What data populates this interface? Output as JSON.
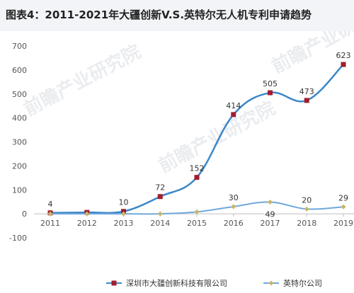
{
  "header": {
    "title": "图表4：2011-2021年大疆创新V.S.英特尔无人机专利申请趋势"
  },
  "watermark": {
    "text": "前瞻产业研究院"
  },
  "chart_data": {
    "type": "line",
    "title": "图表4：2011-2021年大疆创新V.S.英特尔无人机专利申请趋势",
    "xlabel": "",
    "ylabel": "",
    "categories": [
      "2011",
      "2012",
      "2013",
      "2014",
      "2015",
      "2016",
      "2017",
      "2018",
      "2019"
    ],
    "ylim": [
      -100,
      700
    ],
    "yticks": [
      -100,
      0,
      100,
      200,
      300,
      400,
      500,
      600,
      700
    ],
    "grid": false,
    "legend_position": "bottom",
    "series": [
      {
        "name": "深圳市大疆创新科技有限公司",
        "color": "#3a87c8",
        "marker_color": "#a11d2f",
        "marker": "square",
        "values": [
          4,
          6,
          10,
          72,
          152,
          414,
          505,
          473,
          623
        ],
        "labels": [
          "4",
          "",
          "10",
          "72",
          "152",
          "414",
          "505",
          "473",
          "623"
        ]
      },
      {
        "name": "英特尔公司",
        "color": "#6fa8dc",
        "marker_color": "#c8b46a",
        "marker": "diamond",
        "values": [
          0,
          0,
          0,
          0,
          8,
          30,
          49,
          20,
          29
        ],
        "labels": [
          "",
          "",
          "",
          "",
          "",
          "30",
          "49",
          "20",
          "29"
        ]
      }
    ]
  }
}
